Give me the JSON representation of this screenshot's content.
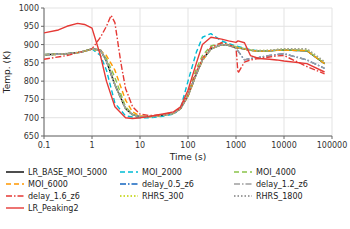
{
  "chart_data": {
    "type": "line",
    "xlabel": "Time (s)",
    "ylabel": "Temp. (K)",
    "log": "x",
    "grid": true,
    "legend": "bottom",
    "xlim": [
      0.1,
      100000
    ],
    "xticks": [
      0.1,
      1,
      10,
      100,
      1000,
      10000,
      100000
    ],
    "ylim": [
      650,
      1000
    ],
    "yticks": [
      650,
      700,
      750,
      800,
      850,
      900,
      950,
      1000
    ],
    "series": [
      {
        "name": "LR_BASE_MOI_5000",
        "color": "#000000",
        "line_style": "solid",
        "x": [
          0.1,
          0.3,
          0.5,
          0.7,
          1.0,
          1.5,
          2.0,
          3.0,
          5.0,
          7.0,
          10,
          15,
          20,
          30,
          50,
          70,
          100,
          150,
          200,
          300,
          500,
          700,
          1000,
          1500,
          2000,
          3000,
          5000,
          7000,
          10000,
          30000,
          70000
        ],
        "values": [
          872,
          875,
          878,
          882,
          888,
          885,
          855,
          790,
          725,
          708,
          703,
          703,
          704,
          707,
          712,
          725,
          760,
          820,
          858,
          888,
          900,
          898,
          892,
          888,
          884,
          882,
          883,
          884,
          885,
          883,
          848
        ]
      },
      {
        "name": "MOI_2000",
        "color": "#00bcd4",
        "line_style": "dashed",
        "x": [
          0.1,
          0.3,
          0.5,
          0.7,
          1.0,
          1.5,
          2.0,
          3.0,
          5.0,
          7.0,
          10,
          15,
          20,
          30,
          50,
          70,
          100,
          150,
          200,
          300,
          500,
          700,
          1000,
          1500,
          2000,
          3000,
          5000,
          7000,
          10000,
          30000,
          70000
        ],
        "values": [
          872,
          875,
          878,
          882,
          888,
          870,
          830,
          740,
          705,
          702,
          700,
          700,
          701,
          704,
          710,
          726,
          800,
          880,
          920,
          930,
          910,
          903,
          896,
          890,
          886,
          883,
          883,
          884,
          885,
          883,
          848
        ]
      },
      {
        "name": "MOI_4000",
        "color": "#8bc34a",
        "line_style": "dashed",
        "x": [
          0.1,
          0.3,
          0.5,
          0.7,
          1.0,
          1.5,
          2.0,
          3.0,
          5.0,
          7.0,
          10,
          15,
          20,
          30,
          50,
          70,
          100,
          150,
          200,
          300,
          500,
          700,
          1000,
          1500,
          2000,
          3000,
          5000,
          7000,
          10000,
          30000,
          70000
        ],
        "values": [
          872,
          875,
          878,
          882,
          888,
          882,
          862,
          810,
          730,
          710,
          704,
          703,
          704,
          707,
          712,
          725,
          765,
          835,
          870,
          896,
          904,
          900,
          894,
          889,
          885,
          882,
          883,
          884,
          885,
          884,
          848
        ]
      },
      {
        "name": "MOI_6000",
        "color": "#ff9800",
        "line_style": "dashed",
        "x": [
          0.1,
          0.3,
          0.5,
          0.7,
          1.0,
          1.5,
          2.0,
          3.0,
          5.0,
          7.0,
          10,
          15,
          20,
          30,
          50,
          70,
          100,
          150,
          200,
          300,
          500,
          700,
          1000,
          1500,
          2000,
          3000,
          5000,
          7000,
          10000,
          30000,
          70000
        ],
        "values": [
          872,
          875,
          878,
          882,
          888,
          884,
          870,
          830,
          748,
          716,
          705,
          703,
          704,
          707,
          712,
          726,
          758,
          820,
          856,
          888,
          900,
          898,
          892,
          888,
          884,
          882,
          883,
          884,
          885,
          883,
          848
        ]
      },
      {
        "name": "delay_0.5_z6",
        "color": "#1565c0",
        "line_style": "dashdot",
        "x": [
          0.1,
          0.3,
          0.5,
          0.7,
          1.0,
          1.5,
          2.0,
          3.0,
          5.0,
          7.0,
          10,
          15,
          20,
          30,
          50,
          70,
          100,
          150,
          200,
          300,
          500,
          700,
          1000,
          1500,
          2000,
          3000,
          5000,
          7000,
          10000,
          30000,
          70000
        ],
        "values": [
          872,
          875,
          878,
          882,
          888,
          885,
          855,
          790,
          725,
          708,
          703,
          703,
          704,
          707,
          712,
          725,
          760,
          820,
          858,
          888,
          900,
          898,
          890,
          858,
          862,
          865,
          870,
          873,
          875,
          858,
          835
        ]
      },
      {
        "name": "delay_1.2_z6",
        "color": "#9e9e9e",
        "line_style": "dashdot",
        "x": [
          0.1,
          0.3,
          0.5,
          0.7,
          1.0,
          1.5,
          2.0,
          3.0,
          5.0,
          7.0,
          10,
          15,
          20,
          30,
          50,
          70,
          100,
          150,
          200,
          300,
          500,
          700,
          1000,
          1500,
          2000,
          3000,
          5000,
          7000,
          10000,
          30000,
          70000
        ],
        "values": [
          872,
          875,
          878,
          882,
          888,
          885,
          855,
          790,
          725,
          708,
          703,
          703,
          704,
          707,
          712,
          725,
          760,
          820,
          858,
          888,
          900,
          898,
          890,
          858,
          862,
          865,
          870,
          873,
          875,
          858,
          835
        ]
      },
      {
        "name": "delay_1.6_z6",
        "color": "#e53935",
        "line_style": "dashdot",
        "x": [
          0.1,
          0.3,
          0.5,
          0.7,
          1.0,
          1.5,
          2.0,
          2.5,
          3.0,
          4.0,
          5.0,
          7.0,
          10,
          15,
          20,
          30,
          50,
          70,
          100,
          150,
          200,
          300,
          500,
          700,
          1000,
          1100,
          1500,
          2000,
          3000,
          5000,
          7000,
          10000,
          30000,
          70000
        ],
        "values": [
          860,
          870,
          878,
          882,
          888,
          920,
          950,
          980,
          960,
          850,
          780,
          730,
          710,
          706,
          706,
          709,
          714,
          727,
          763,
          826,
          862,
          892,
          905,
          900,
          892,
          822,
          852,
          858,
          862,
          866,
          869,
          870,
          840,
          820
        ]
      },
      {
        "name": "RHRS_300",
        "color": "#cddc39",
        "line_style": "dotted",
        "x": [
          0.1,
          0.3,
          0.5,
          0.7,
          1.0,
          1.5,
          2.0,
          3.0,
          5.0,
          7.0,
          10,
          15,
          20,
          30,
          50,
          70,
          100,
          150,
          200,
          300,
          500,
          700,
          1000,
          1500,
          2000,
          3000,
          5000,
          7000,
          10000,
          30000,
          70000
        ],
        "values": [
          872,
          875,
          878,
          882,
          888,
          885,
          855,
          790,
          725,
          708,
          703,
          703,
          704,
          707,
          712,
          725,
          760,
          820,
          858,
          888,
          900,
          898,
          892,
          888,
          885,
          883,
          884,
          886,
          888,
          887,
          852
        ]
      },
      {
        "name": "RHRS_1800",
        "color": "#9e9e9e",
        "line_style": "dotted",
        "x": [
          0.1,
          0.3,
          0.5,
          0.7,
          1.0,
          1.5,
          2.0,
          3.0,
          5.0,
          7.0,
          10,
          15,
          20,
          30,
          50,
          70,
          100,
          150,
          200,
          300,
          500,
          700,
          1000,
          1500,
          2000,
          3000,
          5000,
          7000,
          10000,
          30000,
          70000
        ],
        "values": [
          872,
          875,
          878,
          882,
          888,
          885,
          855,
          790,
          725,
          708,
          703,
          703,
          704,
          707,
          712,
          725,
          760,
          820,
          858,
          888,
          900,
          898,
          892,
          888,
          885,
          883,
          884,
          886,
          888,
          888,
          853
        ]
      },
      {
        "name": "LR_Peaking2",
        "color": "#e53935",
        "line_style": "solid",
        "x": [
          0.1,
          0.2,
          0.3,
          0.5,
          0.7,
          1.0,
          1.5,
          2.0,
          3.0,
          5.0,
          7.0,
          10,
          15,
          20,
          30,
          50,
          70,
          100,
          150,
          200,
          300,
          500,
          700,
          1000,
          1100,
          1500,
          2000,
          3000,
          5000,
          7000,
          10000,
          30000,
          70000
        ],
        "values": [
          932,
          940,
          950,
          958,
          955,
          945,
          870,
          800,
          730,
          700,
          698,
          700,
          703,
          706,
          710,
          716,
          730,
          775,
          850,
          900,
          920,
          915,
          910,
          906,
          910,
          905,
          870,
          862,
          860,
          858,
          855,
          848,
          825
        ]
      }
    ]
  }
}
